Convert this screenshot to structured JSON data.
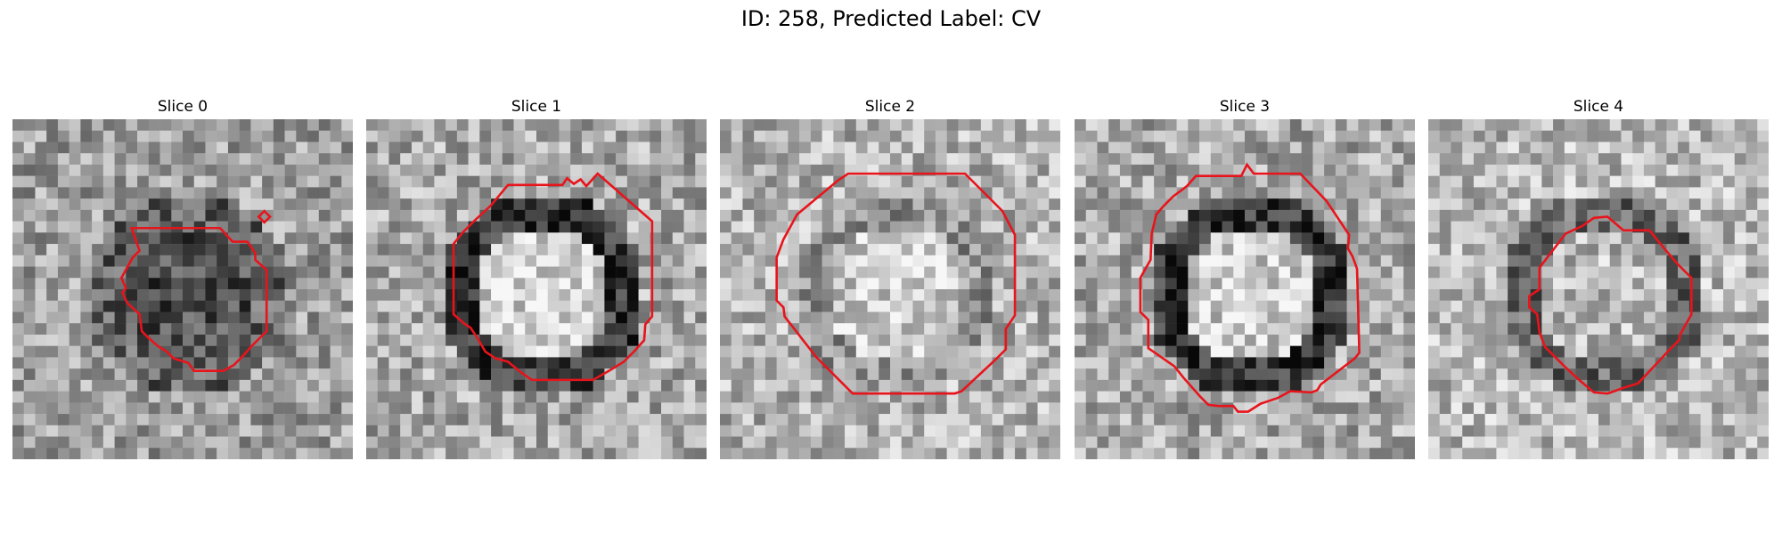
{
  "figure": {
    "title": "ID: 258, Predicted Label: CV"
  },
  "panels": [
    {
      "title": "Slice 0",
      "seed": 11,
      "center_brightness": 0.3,
      "ring_brightness": 0.38,
      "background_brightness": 0.62
    },
    {
      "title": "Slice 1",
      "seed": 23,
      "center_brightness": 0.82,
      "ring_brightness": 0.22,
      "background_brightness": 0.66
    },
    {
      "title": "Slice 2",
      "seed": 37,
      "center_brightness": 0.8,
      "ring_brightness": 0.58,
      "background_brightness": 0.7
    },
    {
      "title": "Slice 3",
      "seed": 41,
      "center_brightness": 0.8,
      "ring_brightness": 0.2,
      "background_brightness": 0.66
    },
    {
      "title": "Slice 4",
      "seed": 53,
      "center_brightness": 0.72,
      "ring_brightness": 0.4,
      "background_brightness": 0.72
    }
  ],
  "colors": {
    "contour": "#e8141c",
    "background": "#ffffff",
    "colormap": "gray"
  }
}
